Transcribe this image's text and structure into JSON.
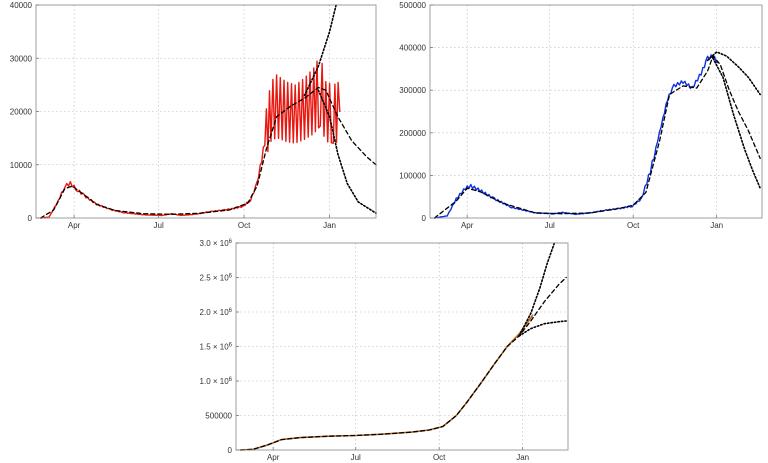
{
  "chart_data": [
    {
      "type": "line",
      "title": "",
      "xlabel": "",
      "ylabel": "",
      "x_range": [
        "2020-02-20",
        "2021-02-20"
      ],
      "ylim": [
        0,
        40000
      ],
      "grid": true,
      "x_ticks": [
        {
          "date": "2020-04-01",
          "label": "Apr"
        },
        {
          "date": "2020-07-01",
          "label": "Jul"
        },
        {
          "date": "2020-10-01",
          "label": "Oct"
        },
        {
          "date": "2021-01-01",
          "label": "Jan"
        }
      ],
      "y_ticks": [
        {
          "value": 0,
          "label": "0"
        },
        {
          "value": 10000,
          "label": "10000"
        },
        {
          "value": 20000,
          "label": "20000"
        },
        {
          "value": 30000,
          "label": "30000"
        },
        {
          "value": 40000,
          "label": "40000"
        }
      ],
      "series": [
        {
          "color": "#e8170f",
          "dash": "solid",
          "width": 1.4,
          "zigzag": 0.28,
          "points": [
            [
              "2020-02-25",
              0
            ],
            [
              "2020-03-05",
              150
            ],
            [
              "2020-03-15",
              3200
            ],
            [
              "2020-03-22",
              6000
            ],
            [
              "2020-03-28",
              6500
            ],
            [
              "2020-04-05",
              5200
            ],
            [
              "2020-04-12",
              4200
            ],
            [
              "2020-04-25",
              2600
            ],
            [
              "2020-05-10",
              1600
            ],
            [
              "2020-05-25",
              1000
            ],
            [
              "2020-06-15",
              600
            ],
            [
              "2020-07-05",
              500
            ],
            [
              "2020-07-15",
              800
            ],
            [
              "2020-07-25",
              500
            ],
            [
              "2020-08-10",
              700
            ],
            [
              "2020-08-25",
              1200
            ],
            [
              "2020-09-10",
              1500
            ],
            [
              "2020-09-20",
              1800
            ],
            [
              "2020-09-30",
              2200
            ],
            [
              "2020-10-08",
              3400
            ],
            [
              "2020-10-15",
              6500
            ],
            [
              "2020-10-20",
              11000
            ],
            [
              "2020-10-25",
              16000
            ],
            [
              "2020-10-30",
              20000
            ],
            [
              "2020-11-05",
              21000
            ],
            [
              "2020-11-15",
              20000
            ],
            [
              "2020-11-25",
              19500
            ],
            [
              "2020-12-05",
              20500
            ],
            [
              "2020-12-15",
              22000
            ],
            [
              "2020-12-22",
              24000
            ],
            [
              "2020-12-28",
              20000
            ],
            [
              "2021-01-05",
              19500
            ],
            [
              "2021-01-12",
              20000
            ]
          ]
        },
        {
          "color": "#000000",
          "dash": "4 3",
          "width": 1.3,
          "points": [
            [
              "2020-02-25",
              0
            ],
            [
              "2020-03-10",
              1500
            ],
            [
              "2020-03-22",
              5500
            ],
            [
              "2020-03-30",
              6000
            ],
            [
              "2020-04-10",
              4600
            ],
            [
              "2020-04-25",
              2600
            ],
            [
              "2020-05-15",
              1400
            ],
            [
              "2020-06-15",
              800
            ],
            [
              "2020-07-15",
              700
            ],
            [
              "2020-08-15",
              900
            ],
            [
              "2020-09-15",
              1500
            ],
            [
              "2020-10-05",
              2800
            ],
            [
              "2020-10-15",
              6000
            ],
            [
              "2020-10-25",
              13000
            ],
            [
              "2020-11-05",
              19000
            ],
            [
              "2020-11-20",
              21000
            ],
            [
              "2020-12-05",
              22500
            ],
            [
              "2020-12-20",
              24500
            ],
            [
              "2020-12-28",
              24000
            ],
            [
              "2021-01-10",
              19000
            ],
            [
              "2021-01-25",
              14500
            ],
            [
              "2021-02-10",
              11500
            ],
            [
              "2021-02-20",
              10000
            ]
          ]
        },
        {
          "color": "#000000",
          "dash": "1.5 2",
          "width": 1.6,
          "points": [
            [
              "2020-12-05",
              23000
            ],
            [
              "2020-12-20",
              28500
            ],
            [
              "2021-01-01",
              35000
            ],
            [
              "2021-01-08",
              40000
            ]
          ]
        },
        {
          "color": "#000000",
          "dash": "1.5 2",
          "width": 1.6,
          "points": [
            [
              "2020-12-20",
              24000
            ],
            [
              "2021-01-01",
              19000
            ],
            [
              "2021-01-10",
              12000
            ],
            [
              "2021-01-20",
              6500
            ],
            [
              "2021-02-01",
              3000
            ],
            [
              "2021-02-20",
              900
            ]
          ]
        }
      ]
    },
    {
      "type": "line",
      "title": "",
      "xlabel": "",
      "ylabel": "",
      "x_range": [
        "2020-02-20",
        "2021-02-20"
      ],
      "ylim": [
        0,
        500000
      ],
      "grid": true,
      "x_ticks": [
        {
          "date": "2020-04-01",
          "label": "Apr"
        },
        {
          "date": "2020-07-01",
          "label": "Jul"
        },
        {
          "date": "2020-10-01",
          "label": "Oct"
        },
        {
          "date": "2021-01-01",
          "label": "Jan"
        }
      ],
      "y_ticks": [
        {
          "value": 0,
          "label": "0"
        },
        {
          "value": 100000,
          "label": "100000"
        },
        {
          "value": 200000,
          "label": "200000"
        },
        {
          "value": 300000,
          "label": "300000"
        },
        {
          "value": 400000,
          "label": "400000"
        },
        {
          "value": 500000,
          "label": "500000"
        }
      ],
      "series": [
        {
          "color": "#1030e0",
          "dash": "solid",
          "width": 1.4,
          "zigzag": 0.012,
          "points": [
            [
              "2020-02-25",
              0
            ],
            [
              "2020-03-10",
              5000
            ],
            [
              "2020-03-20",
              45000
            ],
            [
              "2020-03-30",
              70000
            ],
            [
              "2020-04-05",
              75000
            ],
            [
              "2020-04-15",
              65000
            ],
            [
              "2020-05-01",
              45000
            ],
            [
              "2020-05-20",
              25000
            ],
            [
              "2020-06-15",
              12000
            ],
            [
              "2020-07-05",
              10000
            ],
            [
              "2020-07-15",
              13000
            ],
            [
              "2020-07-30",
              9000
            ],
            [
              "2020-08-15",
              12000
            ],
            [
              "2020-08-30",
              18000
            ],
            [
              "2020-09-15",
              22000
            ],
            [
              "2020-09-30",
              28000
            ],
            [
              "2020-10-10",
              45000
            ],
            [
              "2020-10-20",
              110000
            ],
            [
              "2020-10-30",
              200000
            ],
            [
              "2020-11-08",
              280000
            ],
            [
              "2020-11-15",
              310000
            ],
            [
              "2020-11-25",
              320000
            ],
            [
              "2020-12-05",
              305000
            ],
            [
              "2020-12-15",
              340000
            ],
            [
              "2020-12-22",
              375000
            ],
            [
              "2020-12-28",
              380000
            ],
            [
              "2021-01-02",
              365000
            ]
          ]
        },
        {
          "color": "#000000",
          "dash": "4 3",
          "width": 1.3,
          "points": [
            [
              "2020-02-25",
              0
            ],
            [
              "2020-03-20",
              40000
            ],
            [
              "2020-04-01",
              70000
            ],
            [
              "2020-04-15",
              62000
            ],
            [
              "2020-05-10",
              35000
            ],
            [
              "2020-06-15",
              12000
            ],
            [
              "2020-07-15",
              10000
            ],
            [
              "2020-08-15",
              12000
            ],
            [
              "2020-09-15",
              22000
            ],
            [
              "2020-10-01",
              30000
            ],
            [
              "2020-10-15",
              60000
            ],
            [
              "2020-10-30",
              180000
            ],
            [
              "2020-11-10",
              290000
            ],
            [
              "2020-11-25",
              310000
            ],
            [
              "2020-12-10",
              305000
            ],
            [
              "2020-12-22",
              345000
            ],
            [
              "2020-12-28",
              380000
            ],
            [
              "2021-01-05",
              360000
            ],
            [
              "2021-01-15",
              300000
            ],
            [
              "2021-01-25",
              250000
            ],
            [
              "2021-02-05",
              205000
            ],
            [
              "2021-02-18",
              140000
            ]
          ]
        },
        {
          "color": "#000000",
          "dash": "1.5 2",
          "width": 1.6,
          "points": [
            [
              "2020-12-22",
              370000
            ],
            [
              "2021-01-01",
              390000
            ],
            [
              "2021-01-12",
              380000
            ],
            [
              "2021-01-25",
              355000
            ],
            [
              "2021-02-05",
              330000
            ],
            [
              "2021-02-18",
              290000
            ]
          ]
        },
        {
          "color": "#000000",
          "dash": "1.5 2",
          "width": 1.6,
          "points": [
            [
              "2020-12-28",
              375000
            ],
            [
              "2021-01-08",
              330000
            ],
            [
              "2021-01-20",
              240000
            ],
            [
              "2021-02-01",
              160000
            ],
            [
              "2021-02-10",
              110000
            ],
            [
              "2021-02-18",
              70000
            ]
          ]
        }
      ]
    },
    {
      "type": "line",
      "title": "",
      "xlabel": "",
      "ylabel": "",
      "x_range": [
        "2020-02-20",
        "2021-02-20"
      ],
      "ylim": [
        0,
        3000000
      ],
      "grid": true,
      "x_ticks": [
        {
          "date": "2020-04-01",
          "label": "Apr"
        },
        {
          "date": "2020-07-01",
          "label": "Jul"
        },
        {
          "date": "2020-10-01",
          "label": "Oct"
        },
        {
          "date": "2021-01-01",
          "label": "Jan"
        }
      ],
      "y_ticks": [
        {
          "value": 0,
          "label": "0",
          "exp": ""
        },
        {
          "value": 500000,
          "label": "500000",
          "exp": ""
        },
        {
          "value": 1000000,
          "label": "1.0 × 10",
          "exp": "6"
        },
        {
          "value": 1500000,
          "label": "1.5 × 10",
          "exp": "6"
        },
        {
          "value": 2000000,
          "label": "2.0 × 10",
          "exp": "6"
        },
        {
          "value": 2500000,
          "label": "2.5 × 10",
          "exp": "6"
        },
        {
          "value": 3000000,
          "label": "3.0 × 10",
          "exp": "6"
        }
      ],
      "series": [
        {
          "color": "#b5651d",
          "dash": "solid",
          "width": 1.6,
          "points": [
            [
              "2020-02-25",
              0
            ],
            [
              "2020-03-10",
              10000
            ],
            [
              "2020-03-25",
              70000
            ],
            [
              "2020-04-10",
              150000
            ],
            [
              "2020-05-01",
              180000
            ],
            [
              "2020-06-01",
              200000
            ],
            [
              "2020-07-01",
              210000
            ],
            [
              "2020-08-01",
              230000
            ],
            [
              "2020-09-01",
              260000
            ],
            [
              "2020-09-20",
              290000
            ],
            [
              "2020-10-05",
              340000
            ],
            [
              "2020-10-20",
              500000
            ],
            [
              "2020-11-01",
              700000
            ],
            [
              "2020-11-15",
              950000
            ],
            [
              "2020-12-01",
              1250000
            ],
            [
              "2020-12-15",
              1500000
            ],
            [
              "2020-12-28",
              1680000
            ],
            [
              "2021-01-12",
              1950000
            ]
          ]
        },
        {
          "color": "#000000",
          "dash": "4 3",
          "width": 1.3,
          "points": [
            [
              "2020-02-25",
              0
            ],
            [
              "2020-03-10",
              10000
            ],
            [
              "2020-03-25",
              70000
            ],
            [
              "2020-04-10",
              150000
            ],
            [
              "2020-05-01",
              180000
            ],
            [
              "2020-06-01",
              200000
            ],
            [
              "2020-07-01",
              210000
            ],
            [
              "2020-08-01",
              230000
            ],
            [
              "2020-09-01",
              260000
            ],
            [
              "2020-09-20",
              290000
            ],
            [
              "2020-10-05",
              340000
            ],
            [
              "2020-10-20",
              500000
            ],
            [
              "2020-11-01",
              700000
            ],
            [
              "2020-11-15",
              950000
            ],
            [
              "2020-12-01",
              1250000
            ],
            [
              "2020-12-15",
              1500000
            ],
            [
              "2020-12-28",
              1650000
            ],
            [
              "2021-01-10",
              1870000
            ],
            [
              "2021-01-25",
              2150000
            ],
            [
              "2021-02-10",
              2400000
            ],
            [
              "2021-02-18",
              2500000
            ]
          ]
        },
        {
          "color": "#000000",
          "dash": "1.5 2",
          "width": 1.6,
          "points": [
            [
              "2020-12-28",
              1650000
            ],
            [
              "2021-01-10",
              1980000
            ],
            [
              "2021-01-20",
              2350000
            ],
            [
              "2021-01-28",
              2700000
            ],
            [
              "2021-02-05",
              3000000
            ]
          ]
        },
        {
          "color": "#000000",
          "dash": "1.5 2",
          "width": 1.6,
          "points": [
            [
              "2020-12-28",
              1650000
            ],
            [
              "2021-01-10",
              1760000
            ],
            [
              "2021-01-25",
              1830000
            ],
            [
              "2021-02-10",
              1860000
            ],
            [
              "2021-02-18",
              1870000
            ]
          ]
        }
      ]
    }
  ]
}
